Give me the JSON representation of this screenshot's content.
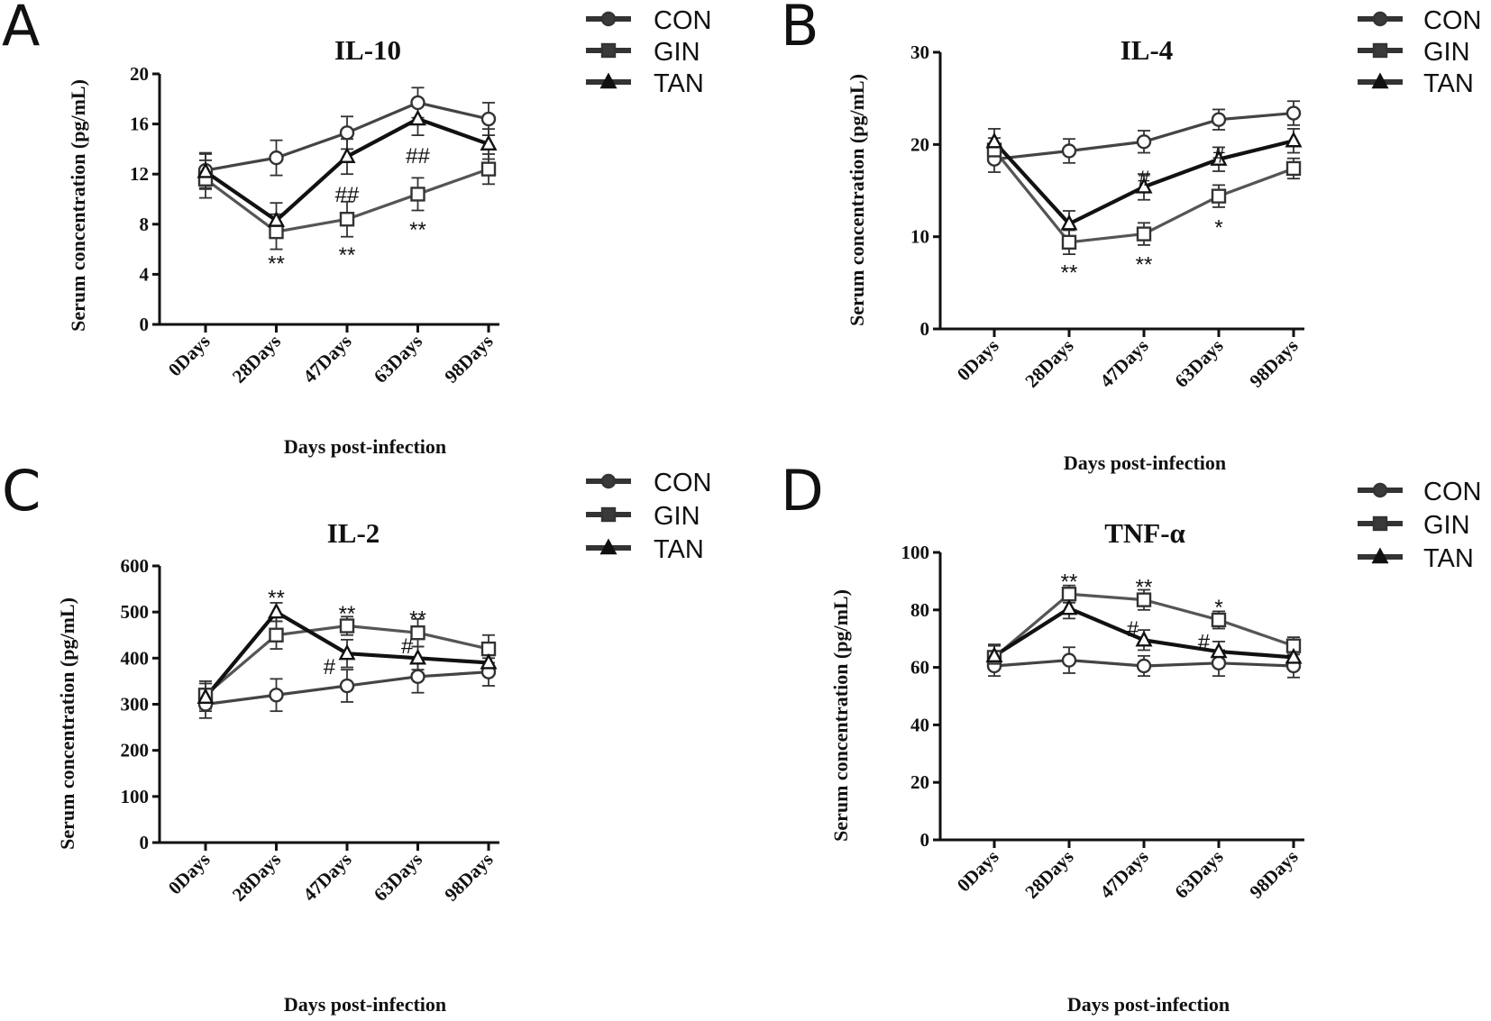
{
  "chart_data": [
    {
      "type": "line",
      "panel": "A",
      "title": "IL-10",
      "xlabel": "Days post-infection",
      "ylabel": "Serum concentration  (pg/mL)",
      "categories": [
        "0Days",
        "28Days",
        "47Days",
        "63Days",
        "98Days"
      ],
      "ylim": [
        0,
        20
      ],
      "yticks": [
        0,
        4,
        8,
        12,
        16,
        20
      ],
      "series": [
        {
          "name": "CON",
          "values": [
            12.3,
            13.3,
            15.3,
            17.7,
            16.4
          ],
          "errors": [
            1.4,
            1.4,
            1.3,
            1.2,
            1.3
          ]
        },
        {
          "name": "GIN",
          "values": [
            11.6,
            7.4,
            8.4,
            10.4,
            12.4
          ],
          "errors": [
            1.5,
            1.4,
            1.4,
            1.3,
            1.2
          ]
        },
        {
          "name": "TAN",
          "values": [
            12.2,
            8.3,
            13.4,
            16.4,
            14.4
          ],
          "errors": [
            1.4,
            1.4,
            1.4,
            1.3,
            1.2
          ]
        }
      ],
      "annotations": [
        {
          "text": "**",
          "x_index": 1,
          "y": 5.0
        },
        {
          "text": "**",
          "x_index": 2,
          "y": 5.7
        },
        {
          "text": "**",
          "x_index": 3,
          "y": 7.7
        },
        {
          "text": "##",
          "x_index": 2,
          "y": 10.5
        },
        {
          "text": "##",
          "x_index": 3,
          "y": 13.6
        }
      ]
    },
    {
      "type": "line",
      "panel": "B",
      "title": "IL-4",
      "xlabel": "Days post-infection",
      "ylabel": "Serum concentration  (pg/mL)",
      "categories": [
        "0Days",
        "28Days",
        "47Days",
        "63Days",
        "98Days"
      ],
      "ylim": [
        0,
        30
      ],
      "yticks": [
        0,
        10,
        20,
        30
      ],
      "series": [
        {
          "name": "CON",
          "values": [
            18.4,
            19.3,
            20.3,
            22.7,
            23.4
          ],
          "errors": [
            1.4,
            1.3,
            1.2,
            1.1,
            1.3
          ]
        },
        {
          "name": "GIN",
          "values": [
            19.4,
            9.4,
            10.3,
            14.4,
            17.4
          ],
          "errors": [
            1.3,
            1.3,
            1.2,
            1.2,
            1.1
          ]
        },
        {
          "name": "TAN",
          "values": [
            20.3,
            11.4,
            15.4,
            18.4,
            20.4
          ],
          "errors": [
            1.4,
            1.4,
            1.4,
            1.3,
            1.3
          ]
        }
      ],
      "annotations": [
        {
          "text": "**",
          "x_index": 1,
          "y": 6.3
        },
        {
          "text": "**",
          "x_index": 2,
          "y": 7.2
        },
        {
          "text": "*",
          "x_index": 3,
          "y": 11.2
        },
        {
          "text": "#",
          "x_index": 2,
          "y": 16.5
        },
        {
          "text": "#",
          "x_index": 3,
          "y": 19.0
        }
      ]
    },
    {
      "type": "line",
      "panel": "C",
      "title": "IL-2",
      "xlabel": "Days post-infection",
      "ylabel": "Serum concentration  (pg/mL)",
      "categories": [
        "0Days",
        "28Days",
        "47Days",
        "63Days",
        "98Days"
      ],
      "ylim": [
        0,
        600
      ],
      "yticks": [
        0,
        100,
        200,
        300,
        400,
        500,
        600
      ],
      "series": [
        {
          "name": "CON",
          "values": [
            300,
            320,
            340,
            360,
            370
          ],
          "errors": [
            30,
            35,
            35,
            35,
            30
          ]
        },
        {
          "name": "GIN",
          "values": [
            320,
            450,
            470,
            455,
            420
          ],
          "errors": [
            30,
            30,
            20,
            30,
            30
          ]
        },
        {
          "name": "TAN",
          "values": [
            315,
            500,
            410,
            400,
            390
          ],
          "errors": [
            30,
            20,
            30,
            25,
            25
          ]
        }
      ],
      "annotations": [
        {
          "text": "**",
          "x_index": 1,
          "y": 535
        },
        {
          "text": "**",
          "x_index": 2,
          "y": 500
        },
        {
          "text": "**",
          "x_index": 3,
          "y": 490
        },
        {
          "text": "#",
          "x_index": 2,
          "y": 385,
          "offset": -0.25
        },
        {
          "text": "#",
          "x_index": 3,
          "y": 430,
          "offset": -0.15
        }
      ]
    },
    {
      "type": "line",
      "panel": "D",
      "title": "TNF-α",
      "xlabel": "Days post-infection",
      "ylabel": "Serum concentration  (pg/mL)",
      "categories": [
        "0Days",
        "28Days",
        "47Days",
        "63Days",
        "98Days"
      ],
      "ylim": [
        0,
        100
      ],
      "yticks": [
        0,
        20,
        40,
        60,
        80,
        100
      ],
      "series": [
        {
          "name": "CON",
          "values": [
            60.5,
            62.5,
            60.5,
            61.5,
            60.5
          ],
          "errors": [
            3.5,
            4.5,
            3.5,
            4.5,
            4.0
          ]
        },
        {
          "name": "GIN",
          "values": [
            63.5,
            85.5,
            83.5,
            76.5,
            67.5
          ],
          "errors": [
            4.0,
            3.0,
            3.5,
            3.0,
            3.0
          ]
        },
        {
          "name": "TAN",
          "values": [
            64,
            80.5,
            69.5,
            65.5,
            63.5
          ],
          "errors": [
            4.0,
            3.5,
            3.5,
            3.5,
            3.0
          ]
        }
      ],
      "annotations": [
        {
          "text": "**",
          "x_index": 1,
          "y": 90.5
        },
        {
          "text": "**",
          "x_index": 2,
          "y": 88.5
        },
        {
          "text": "*",
          "x_index": 3,
          "y": 81.5
        },
        {
          "text": "#",
          "x_index": 2,
          "y": 74.0,
          "offset": -0.15
        },
        {
          "text": "#",
          "x_index": 3,
          "y": 69.5,
          "offset": -0.2
        }
      ]
    }
  ],
  "panel_letters": [
    "A",
    "B",
    "C",
    "D"
  ],
  "legend": [
    "CON",
    "GIN",
    "TAN"
  ]
}
